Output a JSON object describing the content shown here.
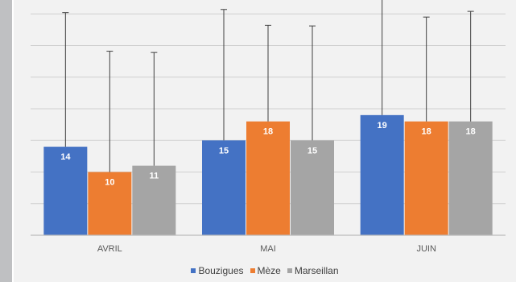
{
  "chart_data": {
    "type": "bar",
    "categories": [
      "AVRIL",
      "MAI",
      "JUIN"
    ],
    "series": [
      {
        "name": "Bouzigues",
        "color": "#4472c4",
        "values": [
          14,
          15,
          19
        ],
        "error_plus": [
          21.2,
          20.7,
          19.2
        ],
        "labels": [
          "14",
          "15",
          "19"
        ]
      },
      {
        "name": "Mèze",
        "color": "#ed7d31",
        "values": [
          10,
          18,
          18
        ],
        "error_plus": [
          19.1,
          15.2,
          16.5
        ],
        "labels": [
          "10",
          "18",
          "18"
        ]
      },
      {
        "name": "Marseillan",
        "color": "#a5a5a5",
        "values": [
          11,
          15,
          18
        ],
        "error_plus": [
          17.9,
          18.1,
          17.4
        ],
        "labels": [
          "11",
          "15",
          "18"
        ]
      }
    ],
    "ylim": [
      0,
      40
    ],
    "yticks": [
      0,
      5,
      10,
      15,
      20,
      25,
      30,
      35,
      40
    ],
    "y_axis_labels_shown": false,
    "grid": true,
    "legend_position": "bottom",
    "title": "",
    "xlabel": "",
    "ylabel": ""
  }
}
